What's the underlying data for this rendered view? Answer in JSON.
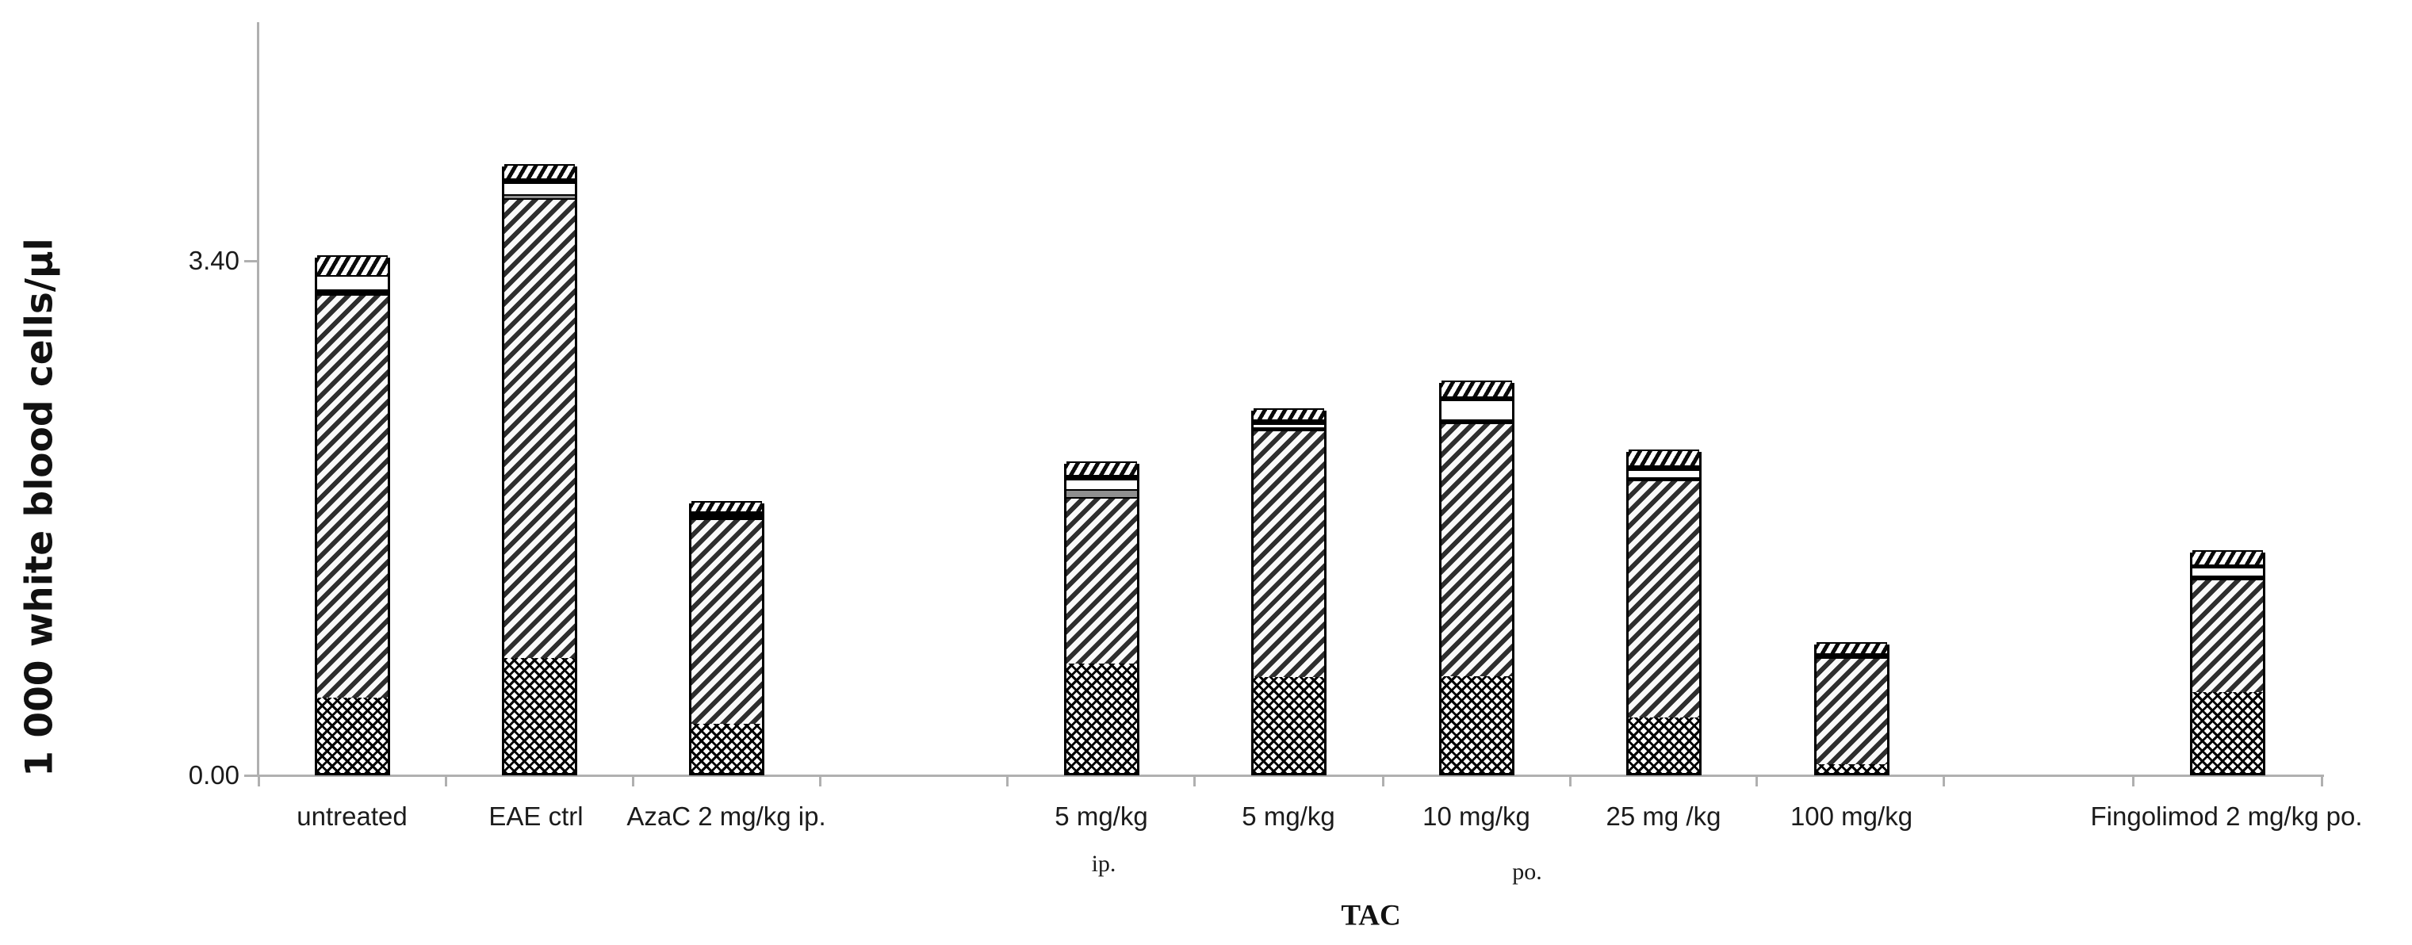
{
  "page": {
    "background": "#ffffff"
  },
  "y_axis": {
    "title": "1 000 white blood cells/µl",
    "ticks": [
      {
        "label": "3.40",
        "value": 3.4
      },
      {
        "label": "0.00",
        "value": 0.0
      }
    ]
  },
  "x_axis": {
    "title": "TAC",
    "sub_labels": [
      {
        "text": "ip.",
        "x": 1392,
        "y": 1074
      },
      {
        "text": "po.",
        "x": 1926,
        "y": 1084
      }
    ]
  },
  "colors": {
    "axis": "#b0b0b0",
    "text": "#1b1b1b",
    "stripe_dark": "#2e2e2e",
    "gray_segment": "#8f8f8f"
  },
  "chart_data": {
    "type": "bar",
    "stacked": true,
    "grid": false,
    "legend": null,
    "title": "",
    "ylabel": "1 000 white blood cells/µl",
    "xlabel": "TAC",
    "ylim": [
      0,
      4.25
    ],
    "y_tick_values": [
      0.0,
      3.4
    ],
    "pattern_key": [
      "crosshatch",
      "diagonal",
      "gray",
      "white",
      "black",
      "hatch"
    ],
    "categories": [
      "untreated",
      "EAE ctrl",
      "AzaC 2 mg/kg ip.",
      "5 mg/kg",
      "5 mg/kg",
      "10 mg/kg",
      "25 mg /kg",
      "100 mg/kg",
      "Fingolimod 2 mg/kg po."
    ],
    "bars": [
      {
        "label": "untreated",
        "center_x": 444,
        "total": 3.42,
        "segments": [
          [
            "crosshatch",
            0.498
          ],
          [
            "diagonal",
            2.666
          ],
          [
            "black",
            0.031
          ],
          [
            "white",
            0.094
          ],
          [
            "hatch",
            0.131
          ]
        ]
      },
      {
        "label": "EAE ctrl",
        "center_x": 680,
        "total": 4.02,
        "segments": [
          [
            "crosshatch",
            0.76
          ],
          [
            "diagonal",
            3.039
          ],
          [
            "gray",
            0.026
          ],
          [
            "white",
            0.079
          ],
          [
            "black",
            0.026
          ],
          [
            "hatch",
            0.094
          ]
        ]
      },
      {
        "label": "AzaC 2 mg/kg ip.",
        "center_x": 916,
        "total": 1.8,
        "segments": [
          [
            "crosshatch",
            0.325
          ],
          [
            "diagonal",
            1.357
          ],
          [
            "black",
            0.047
          ],
          [
            "hatch",
            0.068
          ]
        ]
      },
      {
        "label": "5 mg/kg ip.",
        "center_x": 1389,
        "total": 2.06,
        "segments": [
          [
            "crosshatch",
            0.723
          ],
          [
            "diagonal",
            1.1
          ],
          [
            "gray",
            0.052
          ],
          [
            "white",
            0.068
          ],
          [
            "black",
            0.026
          ],
          [
            "hatch",
            0.089
          ]
        ]
      },
      {
        "label": "5 mg/kg",
        "center_x": 1625,
        "total": 2.41,
        "segments": [
          [
            "crosshatch",
            0.634
          ],
          [
            "diagonal",
            1.635
          ],
          [
            "black",
            0.016
          ],
          [
            "white",
            0.026
          ],
          [
            "black",
            0.026
          ],
          [
            "hatch",
            0.073
          ]
        ]
      },
      {
        "label": "10 mg/kg",
        "center_x": 1862,
        "total": 2.59,
        "segments": [
          [
            "crosshatch",
            0.639
          ],
          [
            "diagonal",
            1.677
          ],
          [
            "black",
            0.021
          ],
          [
            "white",
            0.131
          ],
          [
            "black",
            0.021
          ],
          [
            "hatch",
            0.105
          ]
        ]
      },
      {
        "label": "25 mg /kg",
        "center_x": 2098,
        "total": 2.14,
        "segments": [
          [
            "crosshatch",
            0.367
          ],
          [
            "diagonal",
            1.572
          ],
          [
            "black",
            0.016
          ],
          [
            "white",
            0.052
          ],
          [
            "black",
            0.026
          ],
          [
            "hatch",
            0.105
          ]
        ]
      },
      {
        "label": "100 mg/kg",
        "center_x": 2335,
        "total": 0.86,
        "segments": [
          [
            "crosshatch",
            0.058
          ],
          [
            "diagonal",
            0.707
          ],
          [
            "black",
            0.026
          ],
          [
            "hatch",
            0.073
          ]
        ]
      },
      {
        "label": "Fingolimod 2 mg/kg po.",
        "center_x": 2809,
        "total": 1.47,
        "segments": [
          [
            "crosshatch",
            0.534
          ],
          [
            "diagonal",
            0.749
          ],
          [
            "black",
            0.021
          ],
          [
            "white",
            0.058
          ],
          [
            "black",
            0.016
          ],
          [
            "hatch",
            0.094
          ]
        ]
      }
    ],
    "category_labels": [
      {
        "text": "untreated",
        "x": 444
      },
      {
        "text": "EAE ctrl",
        "x": 676
      },
      {
        "text": "AzaC 2 mg/kg ip.",
        "x": 916
      },
      {
        "text": "5 mg/kg",
        "x": 1389
      },
      {
        "text": "5 mg/kg",
        "x": 1625
      },
      {
        "text": "10 mg/kg",
        "x": 1862
      },
      {
        "text": "25 mg /kg",
        "x": 2098
      },
      {
        "text": "100 mg/kg",
        "x": 2335
      },
      {
        "text": "Fingolimod 2 mg/kg po.",
        "x": 2808
      }
    ],
    "x_tick_positions": [
      326,
      562,
      798,
      1034,
      1270,
      1506,
      1744,
      1980,
      2215,
      2451,
      2690,
      2928
    ]
  }
}
